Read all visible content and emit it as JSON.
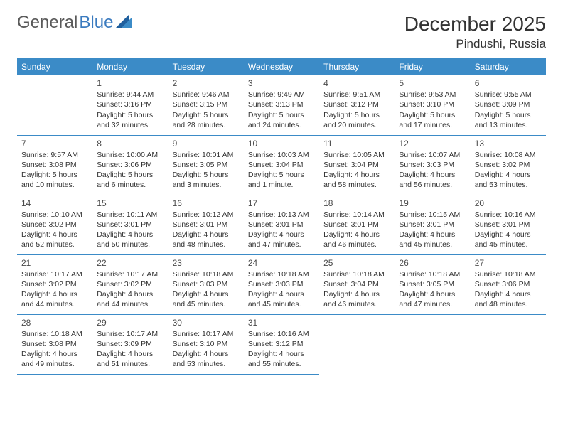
{
  "brand": {
    "text1": "General",
    "text2": "Blue"
  },
  "title": "December 2025",
  "location": "Pindushi, Russia",
  "header_bg": "#3b8bc7",
  "header_fg": "#ffffff",
  "border_color": "#3b8bc7",
  "logo_gray": "#5a5a5a",
  "logo_blue": "#3b7bbf",
  "days": [
    "Sunday",
    "Monday",
    "Tuesday",
    "Wednesday",
    "Thursday",
    "Friday",
    "Saturday"
  ],
  "weeks": [
    [
      null,
      {
        "n": "1",
        "sr": "Sunrise: 9:44 AM",
        "ss": "Sunset: 3:16 PM",
        "d1": "Daylight: 5 hours",
        "d2": "and 32 minutes."
      },
      {
        "n": "2",
        "sr": "Sunrise: 9:46 AM",
        "ss": "Sunset: 3:15 PM",
        "d1": "Daylight: 5 hours",
        "d2": "and 28 minutes."
      },
      {
        "n": "3",
        "sr": "Sunrise: 9:49 AM",
        "ss": "Sunset: 3:13 PM",
        "d1": "Daylight: 5 hours",
        "d2": "and 24 minutes."
      },
      {
        "n": "4",
        "sr": "Sunrise: 9:51 AM",
        "ss": "Sunset: 3:12 PM",
        "d1": "Daylight: 5 hours",
        "d2": "and 20 minutes."
      },
      {
        "n": "5",
        "sr": "Sunrise: 9:53 AM",
        "ss": "Sunset: 3:10 PM",
        "d1": "Daylight: 5 hours",
        "d2": "and 17 minutes."
      },
      {
        "n": "6",
        "sr": "Sunrise: 9:55 AM",
        "ss": "Sunset: 3:09 PM",
        "d1": "Daylight: 5 hours",
        "d2": "and 13 minutes."
      }
    ],
    [
      {
        "n": "7",
        "sr": "Sunrise: 9:57 AM",
        "ss": "Sunset: 3:08 PM",
        "d1": "Daylight: 5 hours",
        "d2": "and 10 minutes."
      },
      {
        "n": "8",
        "sr": "Sunrise: 10:00 AM",
        "ss": "Sunset: 3:06 PM",
        "d1": "Daylight: 5 hours",
        "d2": "and 6 minutes."
      },
      {
        "n": "9",
        "sr": "Sunrise: 10:01 AM",
        "ss": "Sunset: 3:05 PM",
        "d1": "Daylight: 5 hours",
        "d2": "and 3 minutes."
      },
      {
        "n": "10",
        "sr": "Sunrise: 10:03 AM",
        "ss": "Sunset: 3:04 PM",
        "d1": "Daylight: 5 hours",
        "d2": "and 1 minute."
      },
      {
        "n": "11",
        "sr": "Sunrise: 10:05 AM",
        "ss": "Sunset: 3:04 PM",
        "d1": "Daylight: 4 hours",
        "d2": "and 58 minutes."
      },
      {
        "n": "12",
        "sr": "Sunrise: 10:07 AM",
        "ss": "Sunset: 3:03 PM",
        "d1": "Daylight: 4 hours",
        "d2": "and 56 minutes."
      },
      {
        "n": "13",
        "sr": "Sunrise: 10:08 AM",
        "ss": "Sunset: 3:02 PM",
        "d1": "Daylight: 4 hours",
        "d2": "and 53 minutes."
      }
    ],
    [
      {
        "n": "14",
        "sr": "Sunrise: 10:10 AM",
        "ss": "Sunset: 3:02 PM",
        "d1": "Daylight: 4 hours",
        "d2": "and 52 minutes."
      },
      {
        "n": "15",
        "sr": "Sunrise: 10:11 AM",
        "ss": "Sunset: 3:01 PM",
        "d1": "Daylight: 4 hours",
        "d2": "and 50 minutes."
      },
      {
        "n": "16",
        "sr": "Sunrise: 10:12 AM",
        "ss": "Sunset: 3:01 PM",
        "d1": "Daylight: 4 hours",
        "d2": "and 48 minutes."
      },
      {
        "n": "17",
        "sr": "Sunrise: 10:13 AM",
        "ss": "Sunset: 3:01 PM",
        "d1": "Daylight: 4 hours",
        "d2": "and 47 minutes."
      },
      {
        "n": "18",
        "sr": "Sunrise: 10:14 AM",
        "ss": "Sunset: 3:01 PM",
        "d1": "Daylight: 4 hours",
        "d2": "and 46 minutes."
      },
      {
        "n": "19",
        "sr": "Sunrise: 10:15 AM",
        "ss": "Sunset: 3:01 PM",
        "d1": "Daylight: 4 hours",
        "d2": "and 45 minutes."
      },
      {
        "n": "20",
        "sr": "Sunrise: 10:16 AM",
        "ss": "Sunset: 3:01 PM",
        "d1": "Daylight: 4 hours",
        "d2": "and 45 minutes."
      }
    ],
    [
      {
        "n": "21",
        "sr": "Sunrise: 10:17 AM",
        "ss": "Sunset: 3:02 PM",
        "d1": "Daylight: 4 hours",
        "d2": "and 44 minutes."
      },
      {
        "n": "22",
        "sr": "Sunrise: 10:17 AM",
        "ss": "Sunset: 3:02 PM",
        "d1": "Daylight: 4 hours",
        "d2": "and 44 minutes."
      },
      {
        "n": "23",
        "sr": "Sunrise: 10:18 AM",
        "ss": "Sunset: 3:03 PM",
        "d1": "Daylight: 4 hours",
        "d2": "and 45 minutes."
      },
      {
        "n": "24",
        "sr": "Sunrise: 10:18 AM",
        "ss": "Sunset: 3:03 PM",
        "d1": "Daylight: 4 hours",
        "d2": "and 45 minutes."
      },
      {
        "n": "25",
        "sr": "Sunrise: 10:18 AM",
        "ss": "Sunset: 3:04 PM",
        "d1": "Daylight: 4 hours",
        "d2": "and 46 minutes."
      },
      {
        "n": "26",
        "sr": "Sunrise: 10:18 AM",
        "ss": "Sunset: 3:05 PM",
        "d1": "Daylight: 4 hours",
        "d2": "and 47 minutes."
      },
      {
        "n": "27",
        "sr": "Sunrise: 10:18 AM",
        "ss": "Sunset: 3:06 PM",
        "d1": "Daylight: 4 hours",
        "d2": "and 48 minutes."
      }
    ],
    [
      {
        "n": "28",
        "sr": "Sunrise: 10:18 AM",
        "ss": "Sunset: 3:08 PM",
        "d1": "Daylight: 4 hours",
        "d2": "and 49 minutes."
      },
      {
        "n": "29",
        "sr": "Sunrise: 10:17 AM",
        "ss": "Sunset: 3:09 PM",
        "d1": "Daylight: 4 hours",
        "d2": "and 51 minutes."
      },
      {
        "n": "30",
        "sr": "Sunrise: 10:17 AM",
        "ss": "Sunset: 3:10 PM",
        "d1": "Daylight: 4 hours",
        "d2": "and 53 minutes."
      },
      {
        "n": "31",
        "sr": "Sunrise: 10:16 AM",
        "ss": "Sunset: 3:12 PM",
        "d1": "Daylight: 4 hours",
        "d2": "and 55 minutes."
      },
      null,
      null,
      null
    ]
  ]
}
